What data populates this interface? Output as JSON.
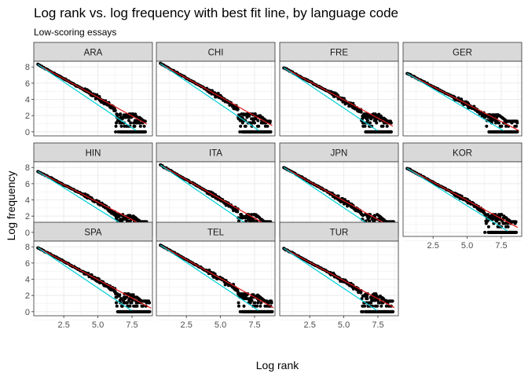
{
  "chart_data": {
    "type": "scatter",
    "title": "Log rank vs. log frequency with best fit line, by language code",
    "subtitle": "Low-scoring essays",
    "xlabel": "Log rank",
    "ylabel": "Log frequency",
    "xlim": [
      0.3,
      9.0
    ],
    "ylim": [
      -0.5,
      8.7
    ],
    "x_ticks": [
      2.5,
      5.0,
      7.5
    ],
    "x_tick_labels": [
      "2.5",
      "5.0",
      "7.5"
    ],
    "y_ticks": [
      0,
      2,
      4,
      6,
      8
    ],
    "y_tick_labels": [
      "0",
      "2",
      "4",
      "6",
      "8"
    ],
    "grid": true,
    "facet_by": "language code",
    "layout": {
      "rows": 3,
      "cols": 4
    },
    "colors": {
      "points": "#000000",
      "red_line": "#e41a1c",
      "cyan_line": "#00d0d8",
      "strip_fill": "#d9d9d9",
      "strip_border": "#333333",
      "grid": "#ebebeb",
      "panel_border": "#333333"
    },
    "panels": [
      {
        "label": "ARA",
        "max_log_rank": 8.5,
        "intercept": 8.3,
        "red_slope": -0.92,
        "cyan_slope": -1.13,
        "y_floor_end": 1.5
      },
      {
        "label": "CHI",
        "max_log_rank": 8.7,
        "intercept": 8.4,
        "red_slope": -0.93,
        "cyan_slope": -1.14,
        "y_floor_end": 1.5
      },
      {
        "label": "FRE",
        "max_log_rank": 8.5,
        "intercept": 7.9,
        "red_slope": -0.9,
        "cyan_slope": -1.13,
        "y_floor_end": 1.3
      },
      {
        "label": "GER",
        "max_log_rank": 8.7,
        "intercept": 7.2,
        "red_slope": -0.86,
        "cyan_slope": -1.0,
        "y_floor_end": 1.2
      },
      {
        "label": "HIN",
        "max_log_rank": 8.6,
        "intercept": 7.5,
        "red_slope": -0.86,
        "cyan_slope": -1.05,
        "y_floor_end": 1.9
      },
      {
        "label": "ITA",
        "max_log_rank": 8.7,
        "intercept": 8.3,
        "red_slope": -0.95,
        "cyan_slope": -1.15,
        "y_floor_end": 1.5
      },
      {
        "label": "JPN",
        "max_log_rank": 8.7,
        "intercept": 8.0,
        "red_slope": -0.93,
        "cyan_slope": -1.13,
        "y_floor_end": 1.6
      },
      {
        "label": "KOR",
        "max_log_rank": 8.6,
        "intercept": 7.9,
        "red_slope": -0.9,
        "cyan_slope": -1.05,
        "y_floor_end": 1.8
      },
      {
        "label": "SPA",
        "max_log_rank": 8.8,
        "intercept": 7.9,
        "red_slope": -0.9,
        "cyan_slope": -1.13,
        "y_floor_end": 1.8
      },
      {
        "label": "TEL",
        "max_log_rank": 8.8,
        "intercept": 8.2,
        "red_slope": -0.93,
        "cyan_slope": -1.12,
        "y_floor_end": 1.6
      },
      {
        "label": "TUR",
        "max_log_rank": 8.6,
        "intercept": 7.8,
        "red_slope": -0.9,
        "cyan_slope": -1.12,
        "y_floor_end": 1.7
      }
    ]
  }
}
